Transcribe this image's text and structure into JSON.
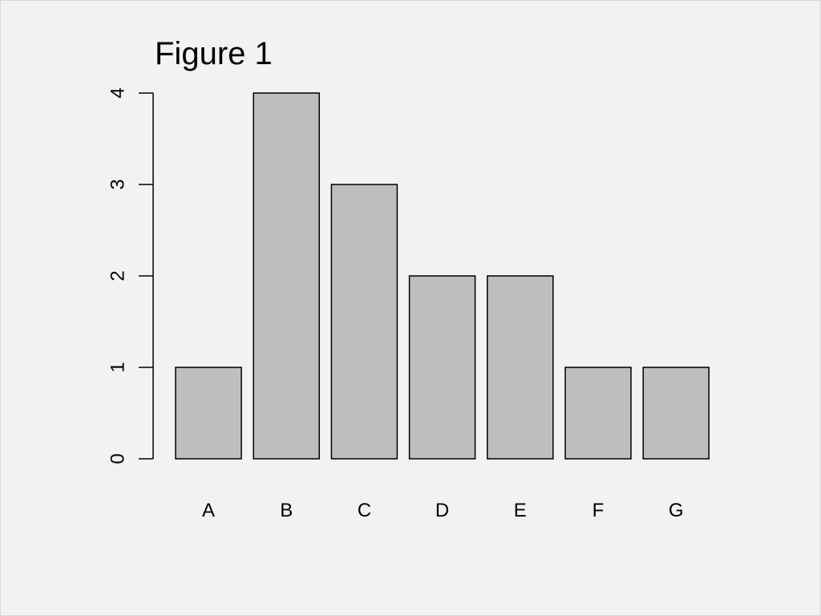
{
  "chart_data": {
    "type": "bar",
    "title": "Figure 1",
    "xlabel": "",
    "ylabel": "",
    "categories": [
      "A",
      "B",
      "C",
      "D",
      "E",
      "F",
      "G"
    ],
    "values": [
      1,
      4,
      3,
      2,
      2,
      1,
      1
    ],
    "ylim": [
      0,
      4
    ],
    "yticks": [
      "0",
      "1",
      "2",
      "3",
      "4"
    ],
    "grid": false,
    "legend": "none",
    "colors": {
      "bar_fill": "#bebebe",
      "bar_stroke": "#000000",
      "background": "#f2f2f2"
    }
  }
}
